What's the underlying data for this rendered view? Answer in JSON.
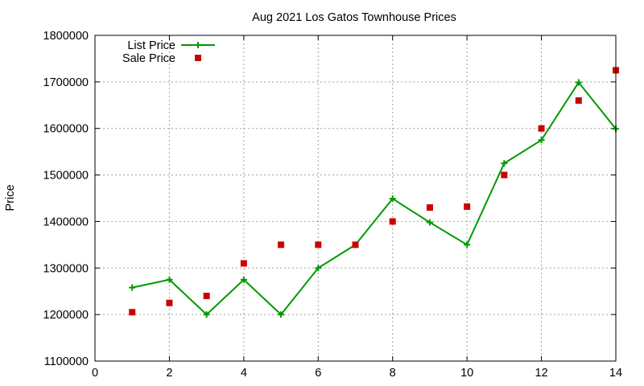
{
  "chart_data": {
    "type": "line",
    "title": "Aug 2021 Los Gatos Townhouse Prices",
    "xlabel": "",
    "ylabel": "Price",
    "xlim": [
      0,
      14
    ],
    "ylim": [
      1100000,
      1800000
    ],
    "xticks": [
      0,
      2,
      4,
      6,
      8,
      10,
      12,
      14
    ],
    "yticks": [
      1100000,
      1200000,
      1300000,
      1400000,
      1500000,
      1600000,
      1700000,
      1800000
    ],
    "grid": true,
    "legend_position": "top-left",
    "series": [
      {
        "name": "List Price",
        "style": "line+cross",
        "color": "#009900",
        "x": [
          1,
          2,
          3,
          4,
          5,
          6,
          7,
          8,
          9,
          10,
          11,
          12,
          13,
          14
        ],
        "y": [
          1258000,
          1275000,
          1200000,
          1275000,
          1200000,
          1300000,
          1350000,
          1449000,
          1398000,
          1350000,
          1525000,
          1575000,
          1699000,
          1599000
        ]
      },
      {
        "name": "Sale Price",
        "style": "square",
        "color": "#cc0000",
        "x": [
          1,
          2,
          3,
          4,
          5,
          6,
          7,
          8,
          9,
          10,
          11,
          12,
          13,
          14
        ],
        "y": [
          1205000,
          1225000,
          1240000,
          1310000,
          1350000,
          1350000,
          1350000,
          1400000,
          1430000,
          1432000,
          1500000,
          1600000,
          1660000,
          1725000
        ]
      }
    ]
  }
}
